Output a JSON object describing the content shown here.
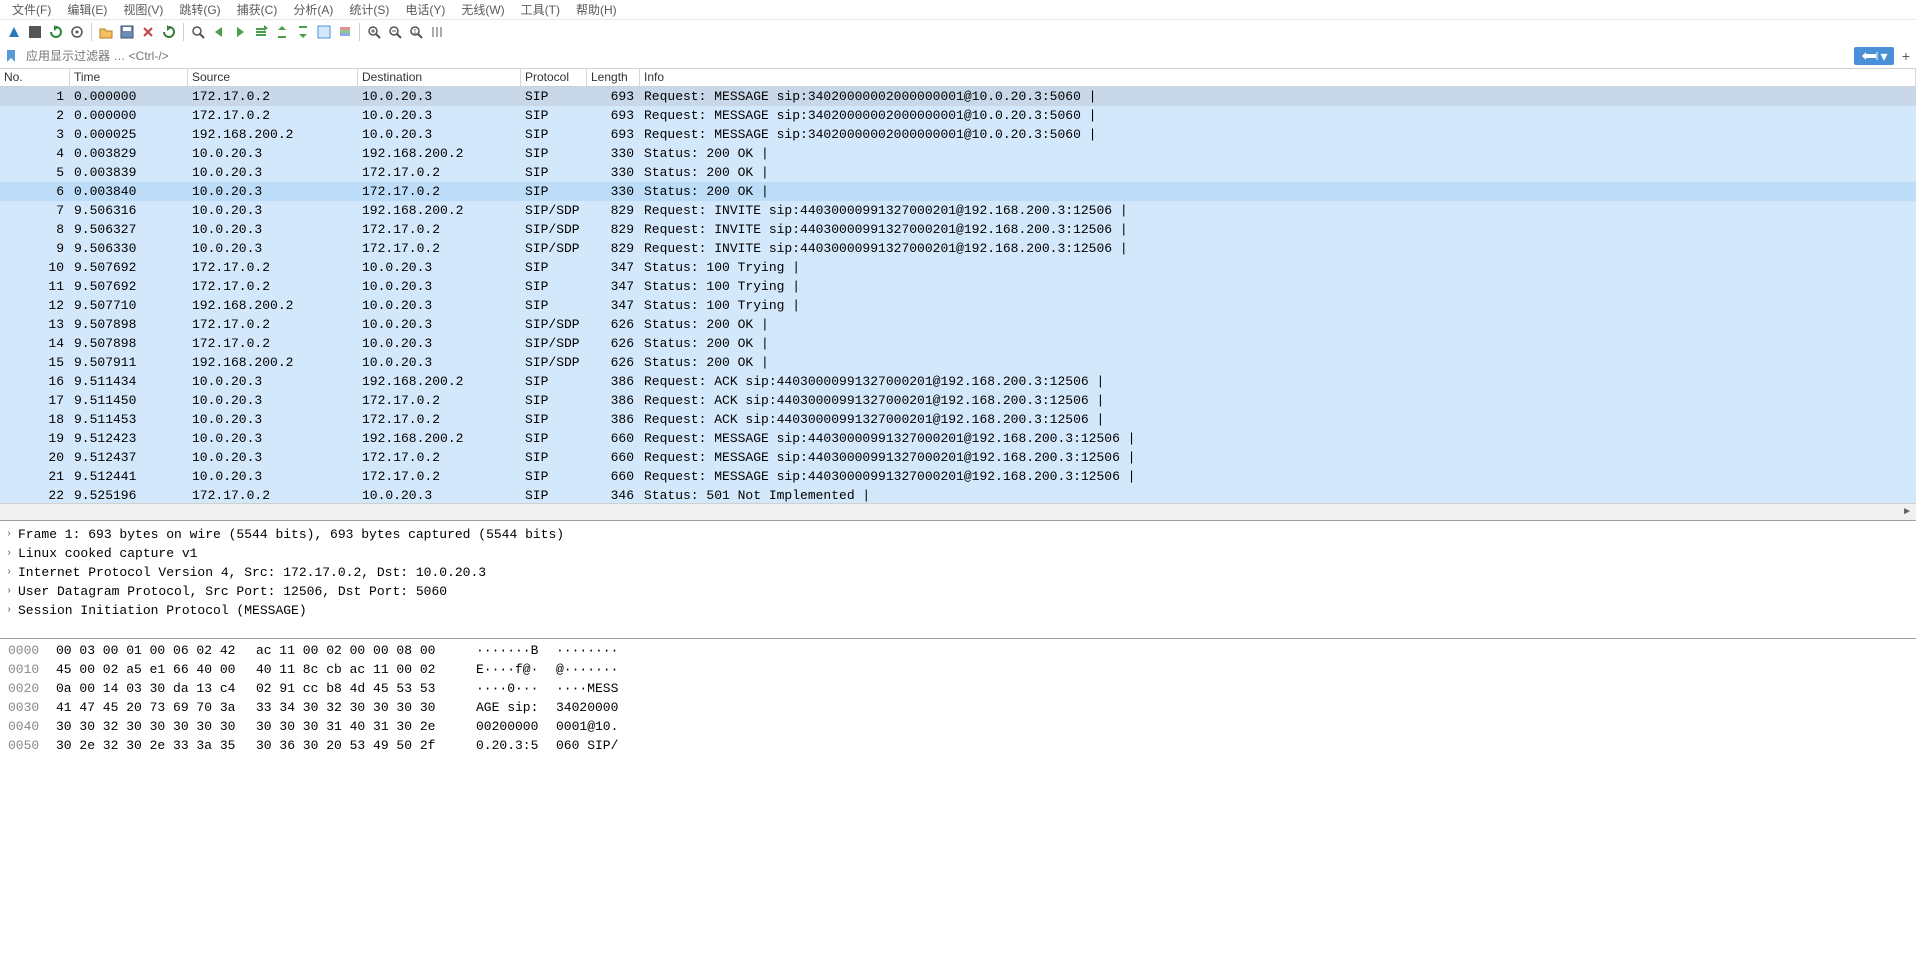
{
  "menu": {
    "items": [
      "文件(F)",
      "编辑(E)",
      "视图(V)",
      "跳转(G)",
      "捕获(C)",
      "分析(A)",
      "统计(S)",
      "电话(Y)",
      "无线(W)",
      "工具(T)",
      "帮助(H)"
    ]
  },
  "filter": {
    "placeholder": "应用显示过滤器 … <Ctrl-/>"
  },
  "columns": {
    "no": "No.",
    "time": "Time",
    "source": "Source",
    "destination": "Destination",
    "protocol": "Protocol",
    "length": "Length",
    "info": "Info"
  },
  "row_colors": {
    "selected_bg": "#c8d8e8",
    "sip_bg": "#d4e8fb",
    "default_bg": "#ffffff"
  },
  "packets": [
    {
      "no": "1",
      "time": "0.000000",
      "src": "172.17.0.2",
      "dst": "10.0.20.3",
      "proto": "SIP",
      "len": "693",
      "info": "Request: MESSAGE sip:34020000002000000001@10.0.20.3:5060 |",
      "bg": "#c8d8e8"
    },
    {
      "no": "2",
      "time": "0.000000",
      "src": "172.17.0.2",
      "dst": "10.0.20.3",
      "proto": "SIP",
      "len": "693",
      "info": "Request: MESSAGE sip:34020000002000000001@10.0.20.3:5060 |",
      "bg": "#d4e8fb"
    },
    {
      "no": "3",
      "time": "0.000025",
      "src": "192.168.200.2",
      "dst": "10.0.20.3",
      "proto": "SIP",
      "len": "693",
      "info": "Request: MESSAGE sip:34020000002000000001@10.0.20.3:5060 |",
      "bg": "#d4e8fb"
    },
    {
      "no": "4",
      "time": "0.003829",
      "src": "10.0.20.3",
      "dst": "192.168.200.2",
      "proto": "SIP",
      "len": "330",
      "info": "Status: 200 OK |",
      "bg": "#d4e8fb"
    },
    {
      "no": "5",
      "time": "0.003839",
      "src": "10.0.20.3",
      "dst": "172.17.0.2",
      "proto": "SIP",
      "len": "330",
      "info": "Status: 200 OK |",
      "bg": "#d4e8fb"
    },
    {
      "no": "6",
      "time": "0.003840",
      "src": "10.0.20.3",
      "dst": "172.17.0.2",
      "proto": "SIP",
      "len": "330",
      "info": "Status: 200 OK |",
      "bg": "#bcdcf7"
    },
    {
      "no": "7",
      "time": "9.506316",
      "src": "10.0.20.3",
      "dst": "192.168.200.2",
      "proto": "SIP/SDP",
      "len": "829",
      "info": "Request: INVITE sip:44030000991327000201@192.168.200.3:12506 |",
      "bg": "#d4e8fb"
    },
    {
      "no": "8",
      "time": "9.506327",
      "src": "10.0.20.3",
      "dst": "172.17.0.2",
      "proto": "SIP/SDP",
      "len": "829",
      "info": "Request: INVITE sip:44030000991327000201@192.168.200.3:12506 |",
      "bg": "#d4e8fb"
    },
    {
      "no": "9",
      "time": "9.506330",
      "src": "10.0.20.3",
      "dst": "172.17.0.2",
      "proto": "SIP/SDP",
      "len": "829",
      "info": "Request: INVITE sip:44030000991327000201@192.168.200.3:12506 |",
      "bg": "#d4e8fb"
    },
    {
      "no": "10",
      "time": "9.507692",
      "src": "172.17.0.2",
      "dst": "10.0.20.3",
      "proto": "SIP",
      "len": "347",
      "info": "Status: 100 Trying |",
      "bg": "#d4e8fb"
    },
    {
      "no": "11",
      "time": "9.507692",
      "src": "172.17.0.2",
      "dst": "10.0.20.3",
      "proto": "SIP",
      "len": "347",
      "info": "Status: 100 Trying |",
      "bg": "#d4e8fb"
    },
    {
      "no": "12",
      "time": "9.507710",
      "src": "192.168.200.2",
      "dst": "10.0.20.3",
      "proto": "SIP",
      "len": "347",
      "info": "Status: 100 Trying |",
      "bg": "#d4e8fb"
    },
    {
      "no": "13",
      "time": "9.507898",
      "src": "172.17.0.2",
      "dst": "10.0.20.3",
      "proto": "SIP/SDP",
      "len": "626",
      "info": "Status: 200 OK |",
      "bg": "#d4e8fb"
    },
    {
      "no": "14",
      "time": "9.507898",
      "src": "172.17.0.2",
      "dst": "10.0.20.3",
      "proto": "SIP/SDP",
      "len": "626",
      "info": "Status: 200 OK |",
      "bg": "#d4e8fb"
    },
    {
      "no": "15",
      "time": "9.507911",
      "src": "192.168.200.2",
      "dst": "10.0.20.3",
      "proto": "SIP/SDP",
      "len": "626",
      "info": "Status: 200 OK |",
      "bg": "#d4e8fb"
    },
    {
      "no": "16",
      "time": "9.511434",
      "src": "10.0.20.3",
      "dst": "192.168.200.2",
      "proto": "SIP",
      "len": "386",
      "info": "Request: ACK sip:44030000991327000201@192.168.200.3:12506 |",
      "bg": "#d4e8fb"
    },
    {
      "no": "17",
      "time": "9.511450",
      "src": "10.0.20.3",
      "dst": "172.17.0.2",
      "proto": "SIP",
      "len": "386",
      "info": "Request: ACK sip:44030000991327000201@192.168.200.3:12506 |",
      "bg": "#d4e8fb"
    },
    {
      "no": "18",
      "time": "9.511453",
      "src": "10.0.20.3",
      "dst": "172.17.0.2",
      "proto": "SIP",
      "len": "386",
      "info": "Request: ACK sip:44030000991327000201@192.168.200.3:12506 |",
      "bg": "#d4e8fb"
    },
    {
      "no": "19",
      "time": "9.512423",
      "src": "10.0.20.3",
      "dst": "192.168.200.2",
      "proto": "SIP",
      "len": "660",
      "info": "Request: MESSAGE sip:44030000991327000201@192.168.200.3:12506 |",
      "bg": "#d4e8fb"
    },
    {
      "no": "20",
      "time": "9.512437",
      "src": "10.0.20.3",
      "dst": "172.17.0.2",
      "proto": "SIP",
      "len": "660",
      "info": "Request: MESSAGE sip:44030000991327000201@192.168.200.3:12506 |",
      "bg": "#d4e8fb"
    },
    {
      "no": "21",
      "time": "9.512441",
      "src": "10.0.20.3",
      "dst": "172.17.0.2",
      "proto": "SIP",
      "len": "660",
      "info": "Request: MESSAGE sip:44030000991327000201@192.168.200.3:12506 |",
      "bg": "#d4e8fb"
    },
    {
      "no": "22",
      "time": "9.525196",
      "src": "172.17.0.2",
      "dst": "10.0.20.3",
      "proto": "SIP",
      "len": "346",
      "info": "Status: 501 Not Implemented |",
      "bg": "#d4e8fb"
    }
  ],
  "details": [
    "Frame 1: 693 bytes on wire (5544 bits), 693 bytes captured (5544 bits)",
    "Linux cooked capture v1",
    "Internet Protocol Version 4, Src: 172.17.0.2, Dst: 10.0.20.3",
    "User Datagram Protocol, Src Port: 12506, Dst Port: 5060",
    "Session Initiation Protocol (MESSAGE)"
  ],
  "bytes": [
    {
      "off": "0000",
      "h1": "00 03 00 01 00 06 02 42",
      "h2": "ac 11 00 02 00 00 08 00",
      "a1": "·······B",
      "a2": "········"
    },
    {
      "off": "0010",
      "h1": "45 00 02 a5 e1 66 40 00",
      "h2": "40 11 8c cb ac 11 00 02",
      "a1": "E····f@·",
      "a2": "@·······"
    },
    {
      "off": "0020",
      "h1": "0a 00 14 03 30 da 13 c4",
      "h2": "02 91 cc b8 4d 45 53 53",
      "a1": "····0···",
      "a2": "····MESS"
    },
    {
      "off": "0030",
      "h1": "41 47 45 20 73 69 70 3a",
      "h2": "33 34 30 32 30 30 30 30",
      "a1": "AGE sip:",
      "a2": "34020000"
    },
    {
      "off": "0040",
      "h1": "30 30 32 30 30 30 30 30",
      "h2": "30 30 30 31 40 31 30 2e",
      "a1": "00200000",
      "a2": "0001@10."
    },
    {
      "off": "0050",
      "h1": "30 2e 32 30 2e 33 3a 35",
      "h2": "30 36 30 20 53 49 50 2f",
      "a1": "0.20.3:5",
      "a2": "060 SIP/"
    }
  ]
}
